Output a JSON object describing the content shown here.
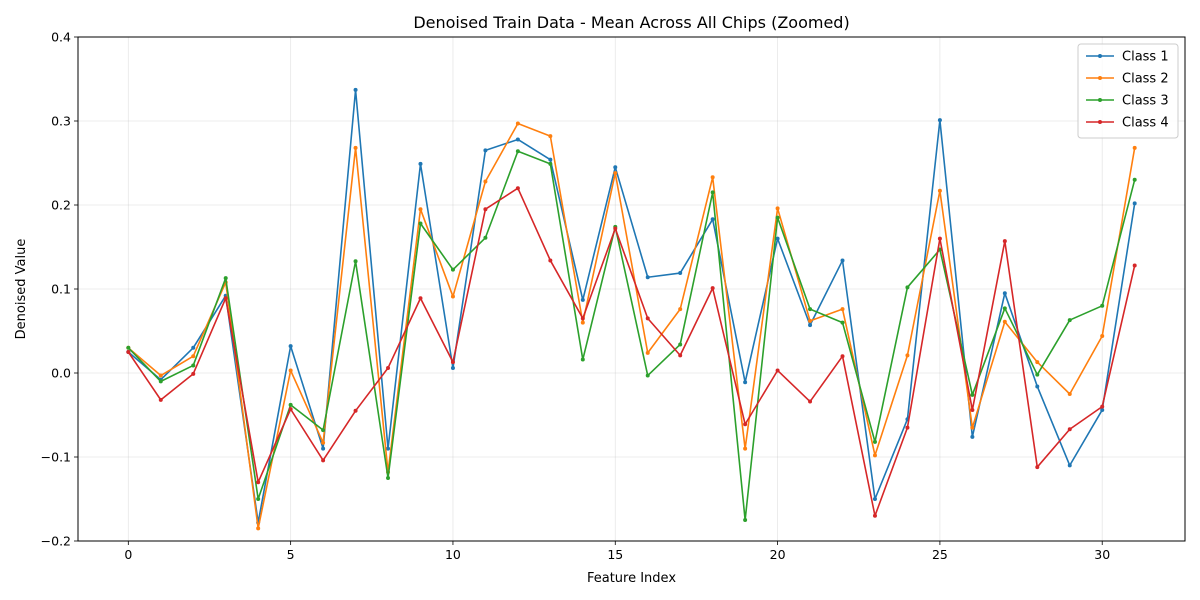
{
  "chart_data": {
    "type": "line",
    "title": "Denoised Train Data - Mean Across All Chips (Zoomed)",
    "xlabel": "Feature Index",
    "ylabel": "Denoised Value",
    "xlim": [
      -1.55,
      32.55
    ],
    "ylim": [
      -0.2,
      0.4
    ],
    "xticks": [
      0,
      5,
      10,
      15,
      20,
      25,
      30
    ],
    "yticks": [
      -0.2,
      -0.1,
      0.0,
      0.1,
      0.2,
      0.3,
      0.4
    ],
    "ytick_labels": [
      "−0.2",
      "−0.1",
      "0.0",
      "0.1",
      "0.2",
      "0.3",
      "0.4"
    ],
    "grid": true,
    "legend_position": "top-right",
    "x": [
      0,
      1,
      2,
      3,
      4,
      5,
      6,
      7,
      8,
      9,
      10,
      11,
      12,
      13,
      14,
      15,
      16,
      17,
      18,
      19,
      20,
      21,
      22,
      23,
      24,
      25,
      26,
      27,
      28,
      29,
      30,
      31
    ],
    "series": [
      {
        "name": "Class 1",
        "color": "#1f77b4",
        "values": [
          0.025,
          -0.008,
          0.03,
          0.092,
          -0.178,
          0.032,
          -0.09,
          0.337,
          -0.09,
          0.249,
          0.006,
          0.265,
          0.278,
          0.254,
          0.087,
          0.245,
          0.114,
          0.119,
          0.183,
          -0.011,
          0.16,
          0.057,
          0.134,
          -0.15,
          -0.055,
          0.301,
          -0.076,
          0.095,
          -0.016,
          -0.11,
          -0.044,
          0.202
        ]
      },
      {
        "name": "Class 2",
        "color": "#ff7f0e",
        "values": [
          0.03,
          -0.003,
          0.02,
          0.108,
          -0.185,
          0.003,
          -0.083,
          0.268,
          -0.118,
          0.195,
          0.091,
          0.228,
          0.297,
          0.282,
          0.06,
          0.238,
          0.024,
          0.076,
          0.233,
          -0.09,
          0.196,
          0.062,
          0.076,
          -0.098,
          0.021,
          0.217,
          -0.065,
          0.061,
          0.013,
          -0.025,
          0.044,
          0.268
        ]
      },
      {
        "name": "Class 3",
        "color": "#2ca02c",
        "values": [
          0.03,
          -0.01,
          0.009,
          0.113,
          -0.15,
          -0.038,
          -0.068,
          0.133,
          -0.125,
          0.178,
          0.123,
          0.161,
          0.264,
          0.249,
          0.016,
          0.174,
          -0.003,
          0.034,
          0.215,
          -0.175,
          0.185,
          0.076,
          0.06,
          -0.082,
          0.102,
          0.147,
          -0.026,
          0.077,
          -0.002,
          0.063,
          0.08,
          0.23
        ]
      },
      {
        "name": "Class 4",
        "color": "#d62728",
        "values": [
          0.025,
          -0.032,
          -0.001,
          0.089,
          -0.13,
          -0.043,
          -0.104,
          -0.045,
          0.006,
          0.089,
          0.013,
          0.195,
          0.22,
          0.134,
          0.065,
          0.172,
          0.065,
          0.021,
          0.101,
          -0.061,
          0.003,
          -0.034,
          0.02,
          -0.17,
          -0.065,
          0.16,
          -0.044,
          0.157,
          -0.112,
          -0.067,
          -0.04,
          0.128
        ]
      }
    ]
  }
}
